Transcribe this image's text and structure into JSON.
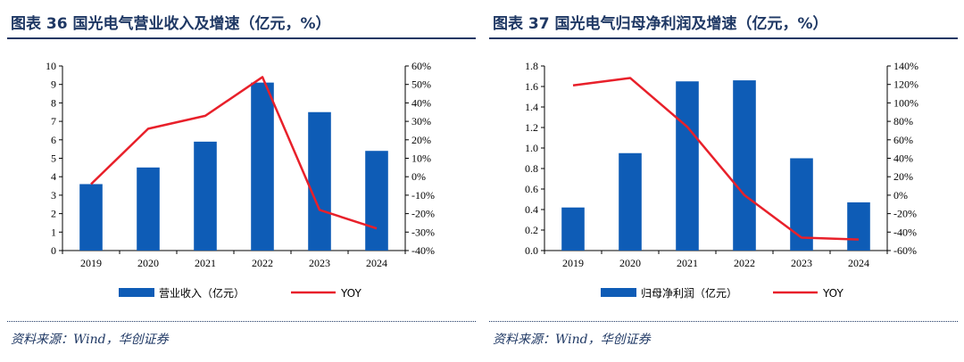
{
  "charts": [
    {
      "title": "图表 36   国光电气营业收入及增速（亿元，%）",
      "source": "资料来源：Wind，华创证券",
      "legend": {
        "bar_label": "营业收入（亿元）",
        "line_label": "YOY"
      }
    },
    {
      "title": "图表 37   国光电气归母净利润及增速（亿元，%）",
      "source": "资料来源：Wind，华创证券",
      "legend": {
        "bar_label": "归母净利润（亿元）",
        "line_label": "YOY"
      }
    }
  ],
  "chart_data": [
    {
      "type": "bar",
      "title": "图表 36   国光电气营业收入及增速（亿元，%）",
      "categories": [
        "2019",
        "2020",
        "2021",
        "2022",
        "2023",
        "2024"
      ],
      "series": [
        {
          "name": "营业收入（亿元）",
          "type": "bar",
          "axis": "left",
          "values": [
            3.6,
            4.5,
            5.9,
            9.1,
            7.5,
            5.4
          ]
        },
        {
          "name": "YOY",
          "type": "line",
          "axis": "right",
          "values": [
            -4,
            26,
            33,
            54,
            -18,
            -28
          ]
        }
      ],
      "ylim_left": [
        0,
        10
      ],
      "yticks_left": [
        0,
        1,
        2,
        3,
        4,
        5,
        6,
        7,
        8,
        9,
        10
      ],
      "ylim_right": [
        -40,
        60
      ],
      "yticks_right": [
        -40,
        -30,
        -20,
        -10,
        0,
        10,
        20,
        30,
        40,
        50,
        60
      ],
      "right_unit": "%",
      "colors": {
        "bar": "#0e5cb6",
        "line": "#e8202a"
      }
    },
    {
      "type": "bar",
      "title": "图表 37   国光电气归母净利润及增速（亿元，%）",
      "categories": [
        "2019",
        "2020",
        "2021",
        "2022",
        "2023",
        "2024"
      ],
      "series": [
        {
          "name": "归母净利润（亿元）",
          "type": "bar",
          "axis": "left",
          "values": [
            0.42,
            0.95,
            1.65,
            1.66,
            0.9,
            0.47
          ]
        },
        {
          "name": "YOY",
          "type": "line",
          "axis": "right",
          "values": [
            119,
            127,
            74,
            0,
            -46,
            -48
          ]
        }
      ],
      "ylim_left": [
        0,
        1.8
      ],
      "yticks_left": [
        0,
        0.2,
        0.4,
        0.6,
        0.8,
        1.0,
        1.2,
        1.4,
        1.6,
        1.8
      ],
      "left_decimals": 1,
      "ylim_right": [
        -60,
        140
      ],
      "yticks_right": [
        -60,
        -40,
        -20,
        0,
        20,
        40,
        60,
        80,
        100,
        120,
        140
      ],
      "right_unit": "%",
      "colors": {
        "bar": "#0e5cb6",
        "line": "#e8202a"
      }
    }
  ]
}
